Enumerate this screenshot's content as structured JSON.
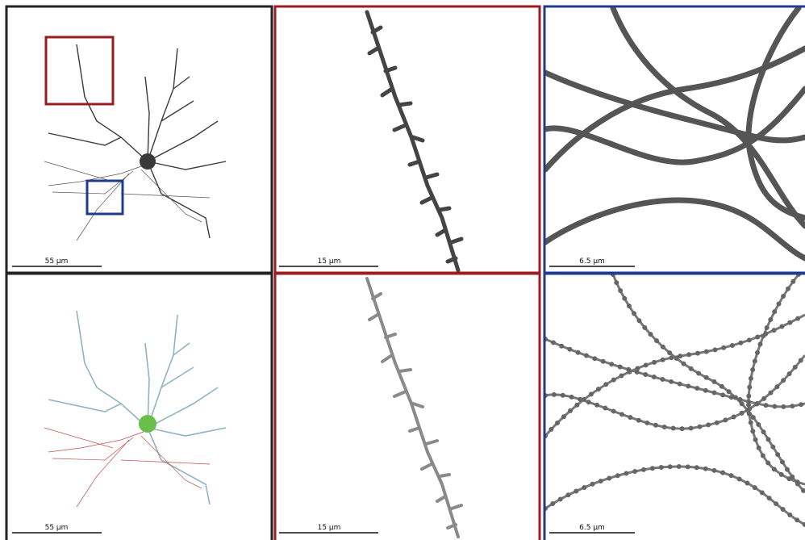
{
  "panels": [
    {
      "scale_label": "55 µm"
    },
    {
      "scale_label": "15 µm"
    },
    {
      "scale_label": "6.5 µm"
    },
    {
      "scale_label": "55 µm"
    },
    {
      "scale_label": "15 µm"
    },
    {
      "scale_label": "6.5 µm"
    }
  ]
}
